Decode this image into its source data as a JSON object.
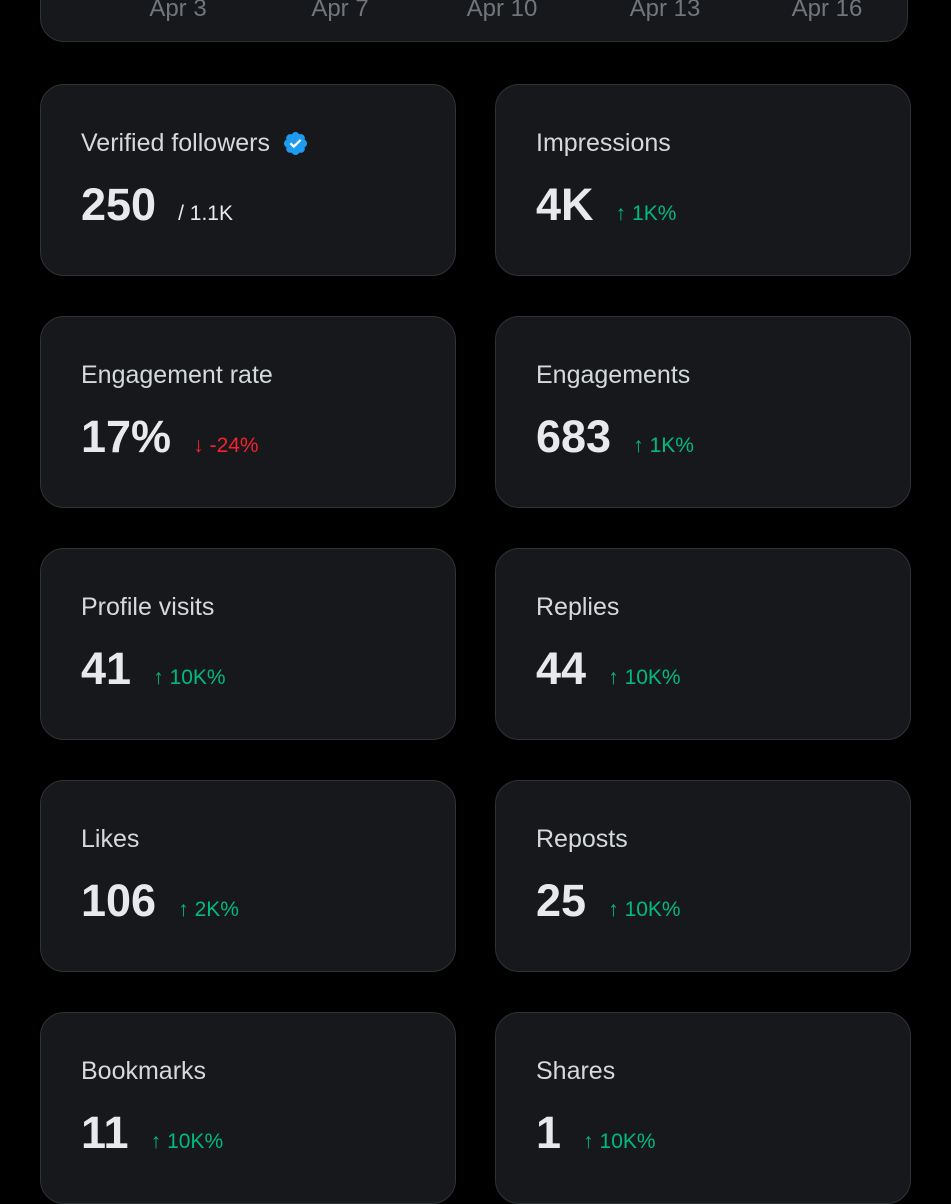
{
  "chart": {
    "dates": [
      "Apr 3",
      "Apr 7",
      "Apr 10",
      "Apr 13",
      "Apr 16"
    ]
  },
  "metrics": [
    {
      "title": "Verified followers",
      "value": "250",
      "sub": "/ 1.1K",
      "verified": true
    },
    {
      "title": "Impressions",
      "value": "4K",
      "change": "1K%",
      "direction": "up"
    },
    {
      "title": "Engagement rate",
      "value": "17%",
      "change": "-24%",
      "direction": "down"
    },
    {
      "title": "Engagements",
      "value": "683",
      "change": "1K%",
      "direction": "up"
    },
    {
      "title": "Profile visits",
      "value": "41",
      "change": "10K%",
      "direction": "up"
    },
    {
      "title": "Replies",
      "value": "44",
      "change": "10K%",
      "direction": "up"
    },
    {
      "title": "Likes",
      "value": "106",
      "change": "2K%",
      "direction": "up"
    },
    {
      "title": "Reposts",
      "value": "25",
      "change": "10K%",
      "direction": "up"
    },
    {
      "title": "Bookmarks",
      "value": "11",
      "change": "10K%",
      "direction": "up"
    },
    {
      "title": "Shares",
      "value": "1",
      "change": "10K%",
      "direction": "up"
    }
  ],
  "icons": {
    "verified": "verified-badge-icon",
    "up": "arrow-up-icon",
    "down": "arrow-down-icon"
  },
  "colors": {
    "up": "#00ba7c",
    "down": "#f4212e",
    "verified": "#1d9bf0"
  }
}
